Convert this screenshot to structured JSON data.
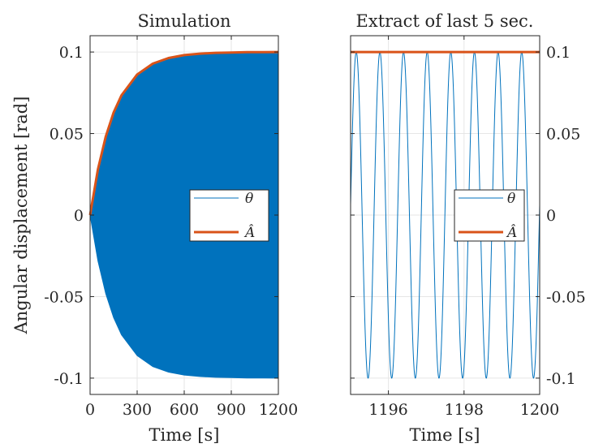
{
  "chart_data": [
    {
      "type": "area",
      "title": "Simulation",
      "xlabel": "Time [s]",
      "ylabel": "Angular displacement [rad]",
      "xlim": [
        0,
        1200
      ],
      "ylim": [
        -0.11,
        0.11
      ],
      "xticks": [
        0,
        300,
        600,
        900,
        1200
      ],
      "xtick_labels": [
        "0",
        "300",
        "600",
        "900",
        "1200"
      ],
      "yticks": [
        -0.1,
        -0.05,
        0,
        0.05,
        0.1
      ],
      "ytick_labels": [
        "-0.1",
        "-0.05",
        "0",
        "0.05",
        "0.1"
      ],
      "yaxis_location": "left",
      "grid": true,
      "legend": "center-right",
      "series": [
        {
          "name": "θ",
          "style": "oscillation envelope (filled)",
          "color": "#0072BD",
          "x": [
            0,
            50,
            100,
            150,
            200,
            300,
            400,
            500,
            600,
            700,
            800,
            900,
            1000,
            1100,
            1200
          ],
          "envelope_upper": [
            0,
            0.0281,
            0.0482,
            0.0629,
            0.0734,
            0.0862,
            0.0929,
            0.0963,
            0.0981,
            0.099,
            0.0995,
            0.0997,
            0.0999,
            0.0999,
            0.1
          ],
          "envelope_lower": [
            0,
            -0.0281,
            -0.0482,
            -0.0629,
            -0.0734,
            -0.0862,
            -0.0929,
            -0.0963,
            -0.0981,
            -0.099,
            -0.0995,
            -0.0997,
            -0.0999,
            -0.0999,
            -0.1
          ]
        },
        {
          "name": "Â",
          "color": "#D95319",
          "x": [
            0,
            50,
            100,
            150,
            200,
            300,
            400,
            500,
            600,
            700,
            800,
            900,
            1000,
            1100,
            1200
          ],
          "y": [
            0,
            0.0281,
            0.0482,
            0.0629,
            0.0734,
            0.0862,
            0.0929,
            0.0963,
            0.0981,
            0.099,
            0.0995,
            0.0997,
            0.0999,
            0.0999,
            0.1
          ]
        }
      ]
    },
    {
      "type": "line",
      "title": "Extract of last 5 sec.",
      "xlabel": "Time [s]",
      "ylabel": "",
      "xlim": [
        1195,
        1200
      ],
      "ylim": [
        -0.11,
        0.11
      ],
      "xticks": [
        1196,
        1198,
        1200
      ],
      "xtick_labels": [
        "1196",
        "1198",
        "1200"
      ],
      "yticks": [
        -0.1,
        -0.05,
        0,
        0.05,
        0.1
      ],
      "ytick_labels": [
        "-0.1",
        "-0.05",
        "0",
        "0.05",
        "0.1"
      ],
      "yaxis_location": "right",
      "grid": true,
      "legend": "center-right",
      "series": [
        {
          "name": "θ",
          "color": "#0072BD",
          "amplitude": 0.1,
          "frequency_hz": 1.6,
          "x_start": 1195,
          "x_end": 1200,
          "peak_times": [
            1195.15,
            1195.78,
            1196.4,
            1197.03,
            1197.65,
            1198.28,
            1198.9,
            1199.53
          ],
          "trough_times": [
            1195.47,
            1196.09,
            1196.72,
            1197.34,
            1197.97,
            1198.59,
            1199.22,
            1199.84
          ]
        },
        {
          "name": "Â",
          "color": "#D95319",
          "x": [
            1195,
            1200
          ],
          "y": [
            0.1,
            0.1
          ]
        }
      ]
    }
  ]
}
